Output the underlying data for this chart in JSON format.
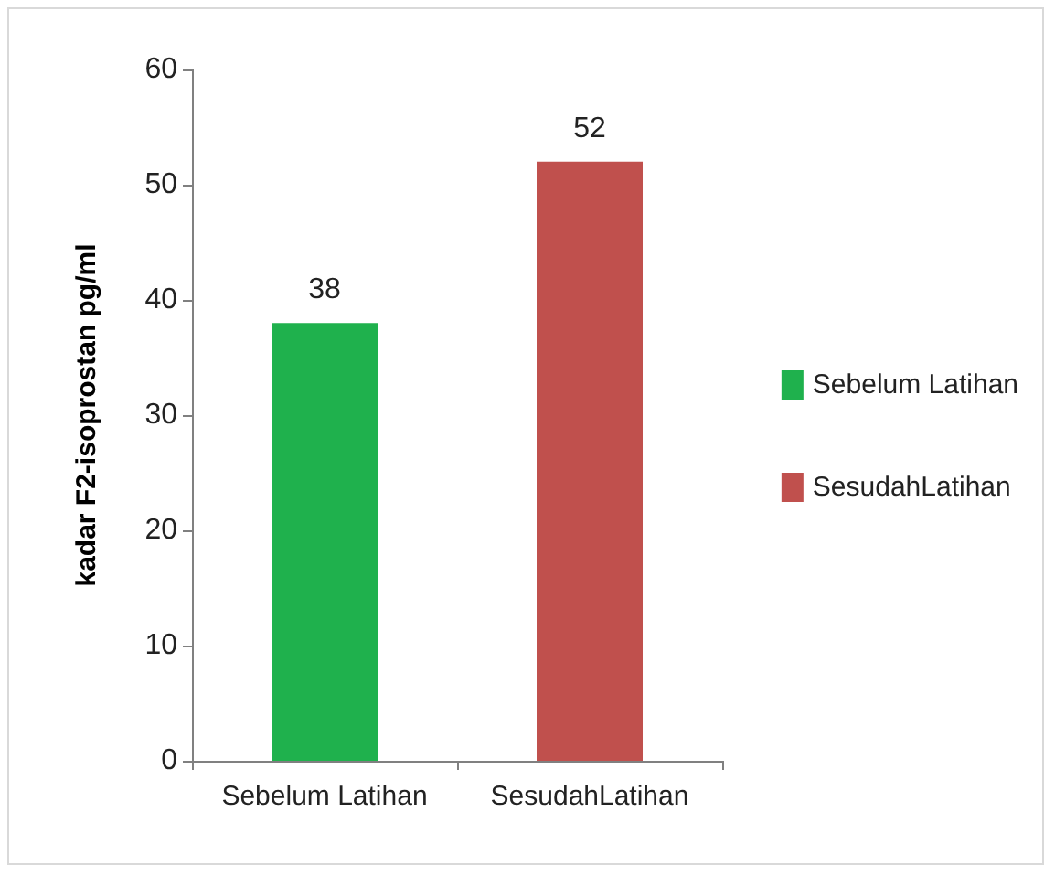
{
  "chart_data": {
    "type": "bar",
    "ylabel": "kadar F2-isoprostan pg/ml",
    "categories": [
      "Sebelum Latihan",
      "SesudahLatihan"
    ],
    "series": [
      {
        "name": "Sebelum Latihan",
        "color": "#1fb14d",
        "values": [
          38,
          null
        ]
      },
      {
        "name": "SesudahLatihan",
        "color": "#c0504d",
        "values": [
          null,
          52
        ]
      }
    ],
    "ylim": [
      0,
      60
    ],
    "yticks": [
      0,
      10,
      20,
      30,
      40,
      50,
      60
    ],
    "grid": false,
    "legend": "right",
    "data_labels": true
  }
}
